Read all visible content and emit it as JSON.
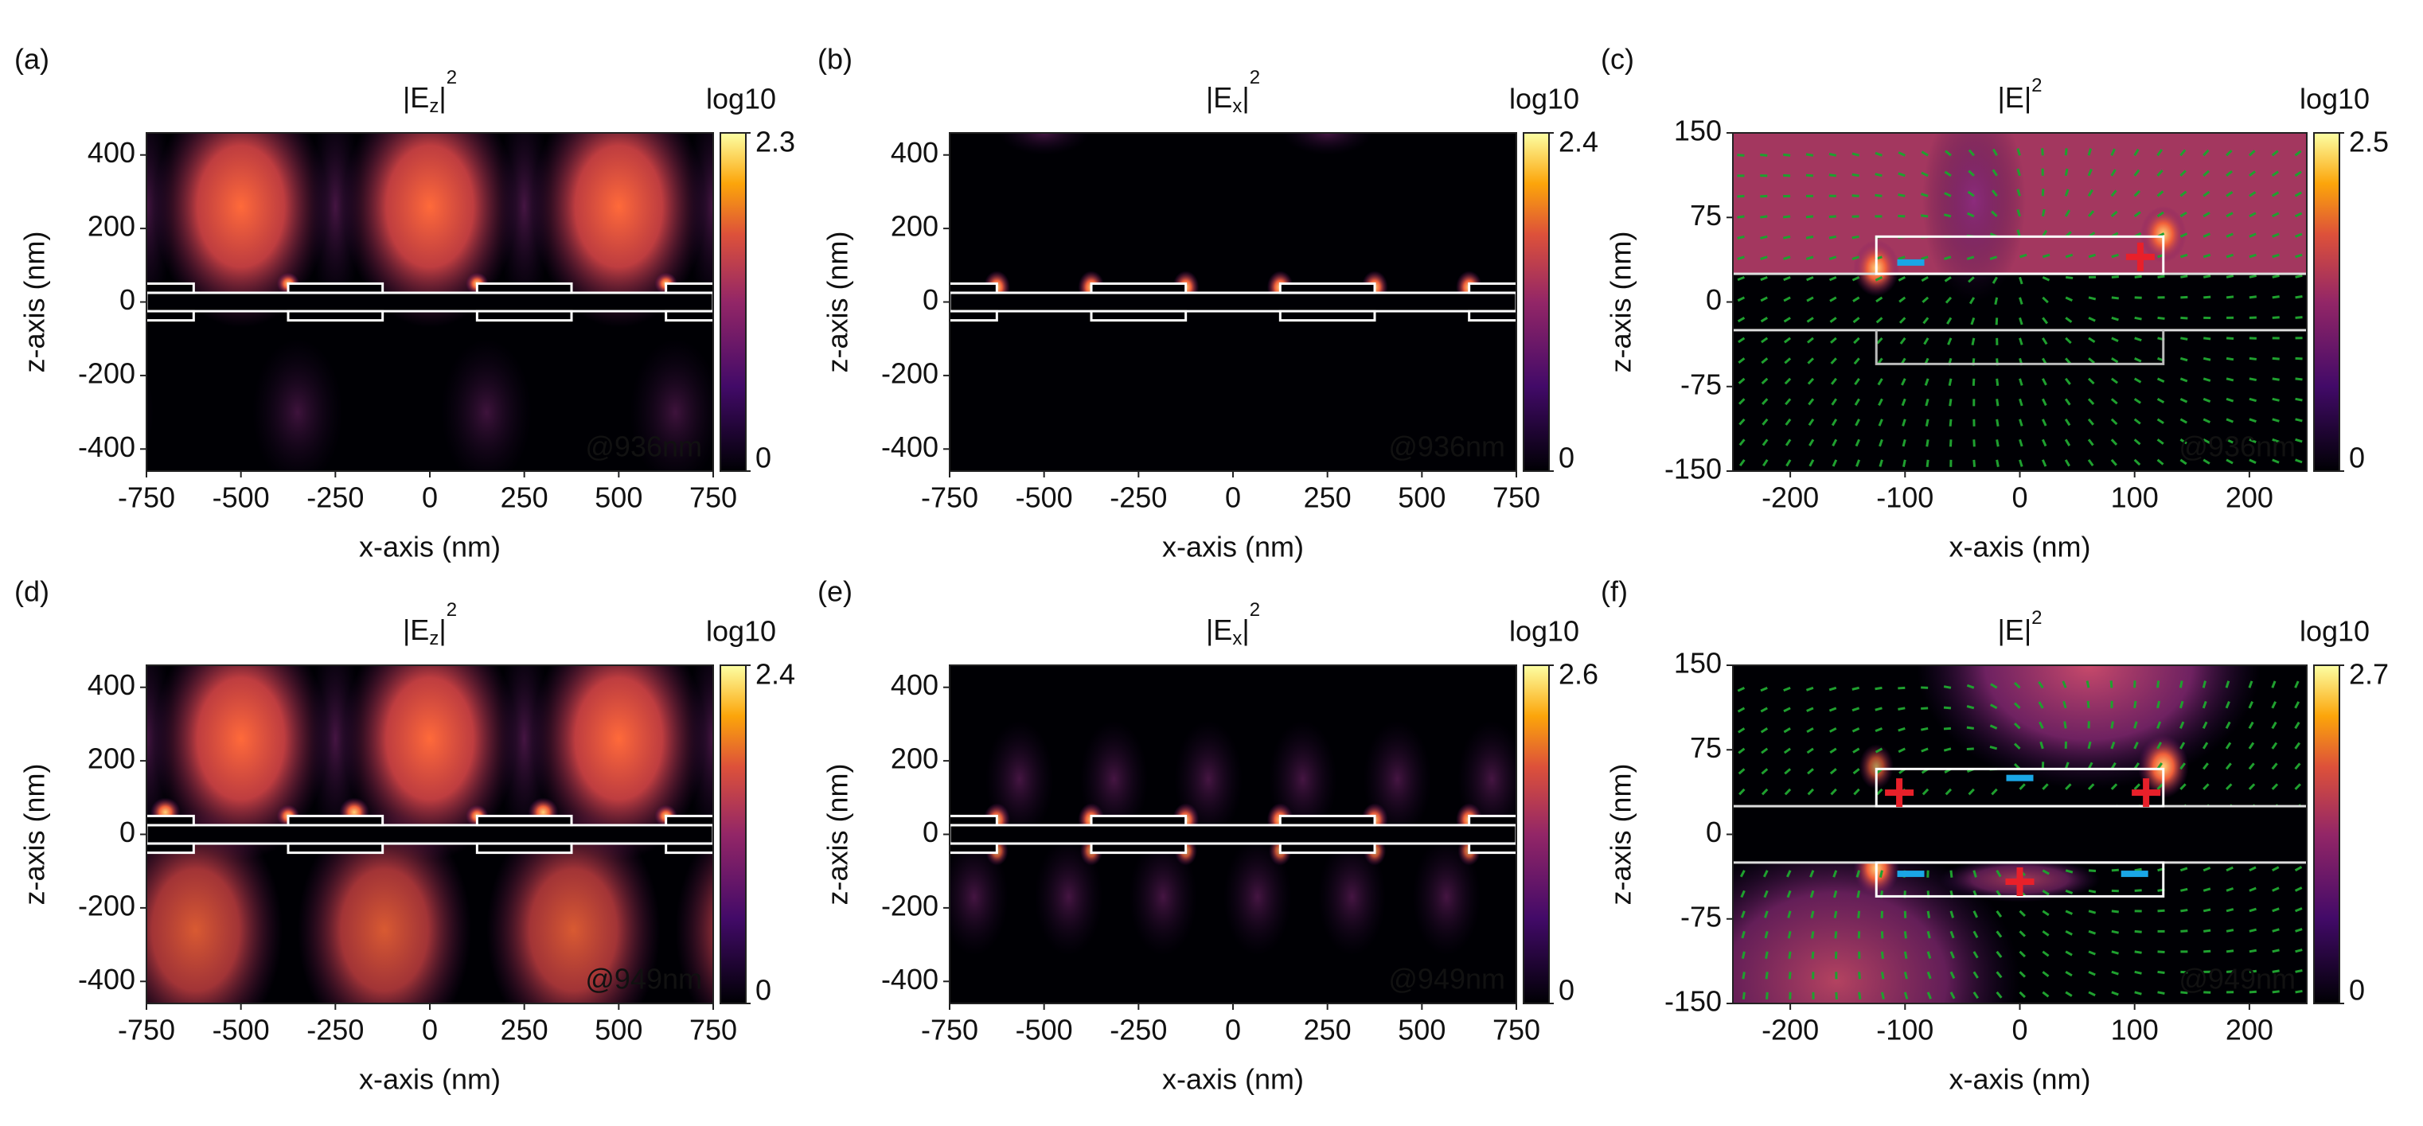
{
  "chart_data": [
    {
      "type": "heatmap",
      "panel": "(a)",
      "title": [
        "|E",
        "z",
        "|",
        "2"
      ],
      "xlabel": "x-axis (nm)",
      "ylabel": "z-axis (nm)",
      "xlim": [
        -750,
        750
      ],
      "ylim": [
        -460,
        460
      ],
      "xticks": [
        -750,
        -500,
        -250,
        0,
        250,
        500,
        750
      ],
      "yticks": [
        -400,
        -200,
        0,
        200,
        400
      ],
      "colorbar_label": "log10",
      "clim": [
        0,
        2.3
      ],
      "cticks": [
        0,
        2.3
      ],
      "annotation": "@936nm",
      "annotation_color": "#1e9e3a"
    },
    {
      "type": "heatmap",
      "panel": "(b)",
      "title": [
        "|E",
        "x",
        "|",
        "2"
      ],
      "xlabel": "x-axis (nm)",
      "ylabel": "z-axis (nm)",
      "xlim": [
        -750,
        750
      ],
      "ylim": [
        -460,
        460
      ],
      "xticks": [
        -750,
        -500,
        -250,
        0,
        250,
        500,
        750
      ],
      "yticks": [
        -400,
        -200,
        0,
        200,
        400
      ],
      "colorbar_label": "log10",
      "clim": [
        0,
        2.4
      ],
      "cticks": [
        0,
        2.4
      ],
      "annotation": "@936nm",
      "annotation_color": "#1e9e3a"
    },
    {
      "type": "heatmap",
      "panel": "(c)",
      "title": [
        "|E|",
        "2"
      ],
      "xlabel": "x-axis (nm)",
      "ylabel": "z-axis (nm)",
      "xlim": [
        -250,
        250
      ],
      "ylim": [
        -150,
        150
      ],
      "xticks": [
        -200,
        -100,
        0,
        100,
        200
      ],
      "yticks": [
        -150,
        -75,
        0,
        75,
        150
      ],
      "colorbar_label": "log10",
      "clim": [
        0,
        2.5
      ],
      "cticks": [
        0,
        2.5
      ],
      "annotation": "@936nm",
      "annotation_color": "#1e9e3a"
    },
    {
      "type": "heatmap",
      "panel": "(d)",
      "title": [
        "|E",
        "z",
        "|",
        "2"
      ],
      "xlabel": "x-axis (nm)",
      "ylabel": "z-axis (nm)",
      "xlim": [
        -750,
        750
      ],
      "ylim": [
        -460,
        460
      ],
      "xticks": [
        -750,
        -500,
        -250,
        0,
        250,
        500,
        750
      ],
      "yticks": [
        -400,
        -200,
        0,
        200,
        400
      ],
      "colorbar_label": "log10",
      "clim": [
        0,
        2.4
      ],
      "cticks": [
        0,
        2.4
      ],
      "annotation": "@949nm",
      "annotation_color": "#3a8fd6"
    },
    {
      "type": "heatmap",
      "panel": "(e)",
      "title": [
        "|E",
        "x",
        "|",
        "2"
      ],
      "xlabel": "x-axis (nm)",
      "ylabel": "z-axis (nm)",
      "xlim": [
        -750,
        750
      ],
      "ylim": [
        -460,
        460
      ],
      "xticks": [
        -750,
        -500,
        -250,
        0,
        250,
        500,
        750
      ],
      "yticks": [
        -400,
        -200,
        0,
        200,
        400
      ],
      "colorbar_label": "log10",
      "clim": [
        0,
        2.6
      ],
      "cticks": [
        0,
        2.6
      ],
      "annotation": "@949nm",
      "annotation_color": "#3a8fd6"
    },
    {
      "type": "heatmap",
      "panel": "(f)",
      "title": [
        "|E|",
        "2"
      ],
      "xlabel": "x-axis (nm)",
      "ylabel": "z-axis (nm)",
      "xlim": [
        -250,
        250
      ],
      "ylim": [
        -150,
        150
      ],
      "xticks": [
        -200,
        -100,
        0,
        100,
        200
      ],
      "yticks": [
        -150,
        -75,
        0,
        75,
        150
      ],
      "colorbar_label": "log10",
      "clim": [
        0,
        2.7
      ],
      "cticks": [
        0,
        2.7
      ],
      "annotation": "@949nm",
      "annotation_color": "#3a8fd6"
    }
  ]
}
